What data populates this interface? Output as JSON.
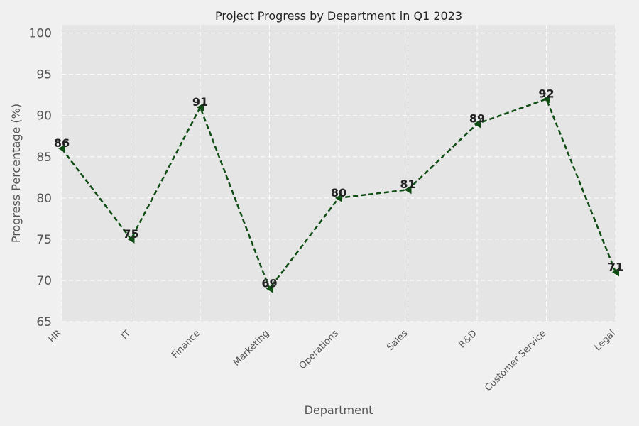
{
  "chart_data": {
    "type": "line",
    "title": "Project Progress by Department in Q1 2023",
    "xlabel": "Department",
    "ylabel": "Progress Percentage (%)",
    "categories": [
      "HR",
      "IT",
      "Finance",
      "Marketing",
      "Operations",
      "Sales",
      "R&D",
      "Customer Service",
      "Legal"
    ],
    "series": [
      {
        "values": [
          86,
          75,
          91,
          69,
          80,
          81,
          89,
          92,
          71
        ]
      }
    ],
    "ylim": [
      65,
      101
    ],
    "yticks": [
      65,
      70,
      75,
      80,
      85,
      90,
      95,
      100
    ],
    "grid": true,
    "line_style": "dashed",
    "marker": "left-triangle",
    "colors": {
      "line": "#0f4d14",
      "plot_background": "#e5e5e5",
      "figure_background": "#f0f0f0",
      "grid": "#ffffff"
    }
  }
}
